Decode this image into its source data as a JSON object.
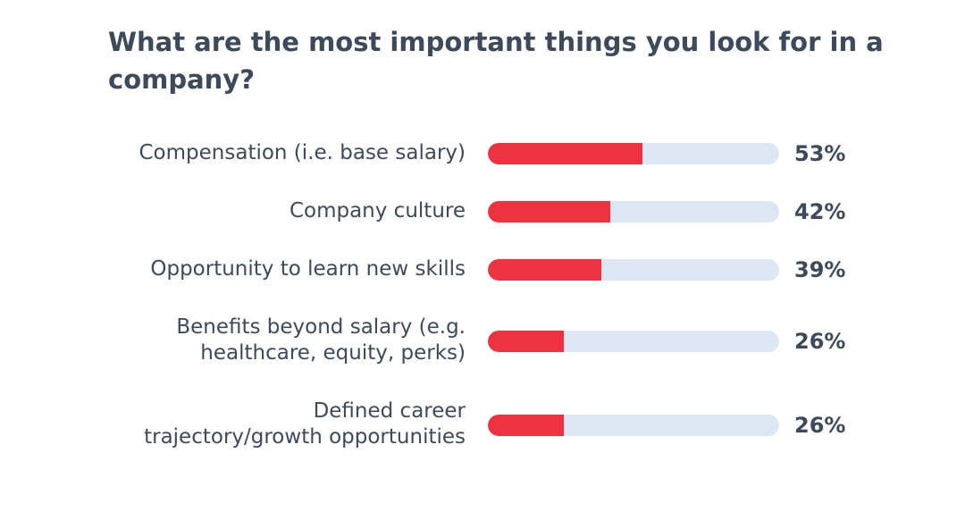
{
  "chart_data": {
    "type": "bar",
    "orientation": "horizontal",
    "title": "What are the most important things you look for in a company?",
    "categories": [
      [
        "Compensation (i.e. base salary)"
      ],
      [
        "Company culture"
      ],
      [
        "Opportunity to learn new skills"
      ],
      [
        "Benefits beyond salary (e.g.",
        "healthcare, equity, perks)"
      ],
      [
        "Defined career",
        "trajectory/growth opportunities"
      ]
    ],
    "values": [
      53,
      42,
      39,
      26,
      26
    ],
    "value_labels": [
      "53%",
      "42%",
      "39%",
      "26%",
      "26%"
    ],
    "xlim": [
      0,
      100
    ],
    "grid": false,
    "colors": {
      "fill": "#ee3340",
      "track": "#dde6f3",
      "text": "#3d4a5c"
    }
  }
}
